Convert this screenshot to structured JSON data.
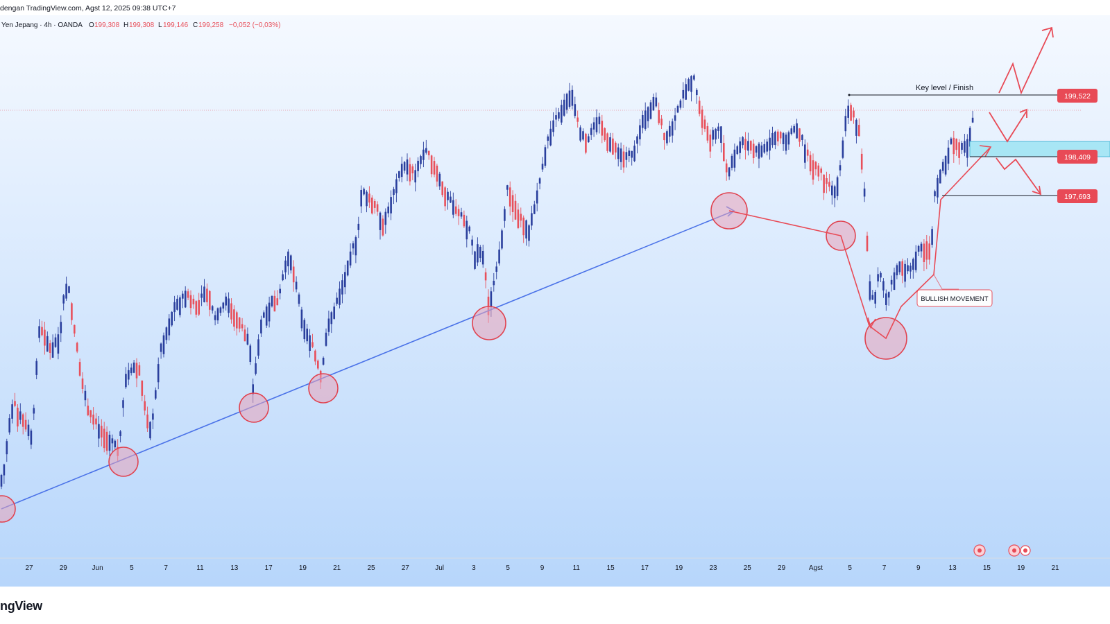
{
  "header": {
    "published": "dengan TradingView.com, Agst 12, 2025 09:38 UTC+7"
  },
  "legend": {
    "symbol": "Yen Jepang · 4h · OANDA",
    "o_label": "O",
    "o_value": "199,308",
    "h_label": "H",
    "h_value": "199,308",
    "l_label": "L",
    "l_value": "199,146",
    "c_label": "C",
    "c_value": "199,258",
    "change": "−0,052 (−0,03%)"
  },
  "brand": "ngView",
  "colors": {
    "up": "#2a3f9d",
    "down": "#e8505b",
    "trendline": "#4a72e8",
    "marker": "#e0424f",
    "zone": "#a8e6f5",
    "price_label": "#e84a56"
  },
  "chart_data": {
    "type": "candlestick",
    "timeframe": "4h",
    "x_ticks": [
      "27",
      "29",
      "Jun",
      "5",
      "7",
      "11",
      "13",
      "17",
      "19",
      "21",
      "25",
      "27",
      "Jul",
      "3",
      "5",
      "9",
      "11",
      "15",
      "17",
      "19",
      "23",
      "25",
      "29",
      "Agst",
      "5",
      "7",
      "9",
      "13",
      "15",
      "19",
      "21"
    ],
    "price_levels": [
      {
        "value": "199,522",
        "label": "Key level / Finish"
      },
      {
        "value": "198,409",
        "label": ""
      },
      {
        "value": "197,693",
        "label": ""
      }
    ],
    "annotations": {
      "key_level_text": "Key level / Finish",
      "callout_text": "BULLISH MOVEMENT"
    },
    "swing_path": [
      {
        "time": "Jun 1",
        "price": "low"
      }
    ],
    "series": []
  }
}
